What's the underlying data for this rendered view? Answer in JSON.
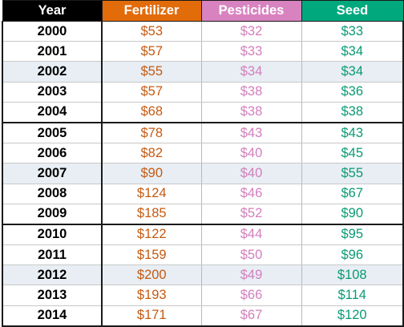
{
  "chart_data": {
    "type": "table",
    "columns": [
      "Year",
      "Fertilizer",
      "Pesticides",
      "Seed"
    ],
    "header_colors": {
      "Year": "#000000",
      "Fertilizer": "#e26b0a",
      "Pesticides": "#d883c0",
      "Seed": "#00a87e"
    },
    "value_colors": {
      "Fertilizer": "#c55a11",
      "Pesticides": "#d37ebd",
      "Seed": "#0a9a73"
    },
    "rows": [
      {
        "year": "2000",
        "fertilizer": "$53",
        "pesticides": "$32",
        "seed": "$33"
      },
      {
        "year": "2001",
        "fertilizer": "$57",
        "pesticides": "$33",
        "seed": "$34"
      },
      {
        "year": "2002",
        "fertilizer": "$55",
        "pesticides": "$34",
        "seed": "$34"
      },
      {
        "year": "2003",
        "fertilizer": "$57",
        "pesticides": "$38",
        "seed": "$36"
      },
      {
        "year": "2004",
        "fertilizer": "$68",
        "pesticides": "$38",
        "seed": "$38"
      },
      {
        "year": "2005",
        "fertilizer": "$78",
        "pesticides": "$43",
        "seed": "$43"
      },
      {
        "year": "2006",
        "fertilizer": "$82",
        "pesticides": "$40",
        "seed": "$45"
      },
      {
        "year": "2007",
        "fertilizer": "$90",
        "pesticides": "$40",
        "seed": "$55"
      },
      {
        "year": "2008",
        "fertilizer": "$124",
        "pesticides": "$46",
        "seed": "$67"
      },
      {
        "year": "2009",
        "fertilizer": "$185",
        "pesticides": "$52",
        "seed": "$90"
      },
      {
        "year": "2010",
        "fertilizer": "$122",
        "pesticides": "$44",
        "seed": "$95"
      },
      {
        "year": "2011",
        "fertilizer": "$159",
        "pesticides": "$50",
        "seed": "$96"
      },
      {
        "year": "2012",
        "fertilizer": "$200",
        "pesticides": "$49",
        "seed": "$108"
      },
      {
        "year": "2013",
        "fertilizer": "$193",
        "pesticides": "$66",
        "seed": "$114"
      },
      {
        "year": "2014",
        "fertilizer": "$171",
        "pesticides": "$67",
        "seed": "$120"
      }
    ]
  }
}
